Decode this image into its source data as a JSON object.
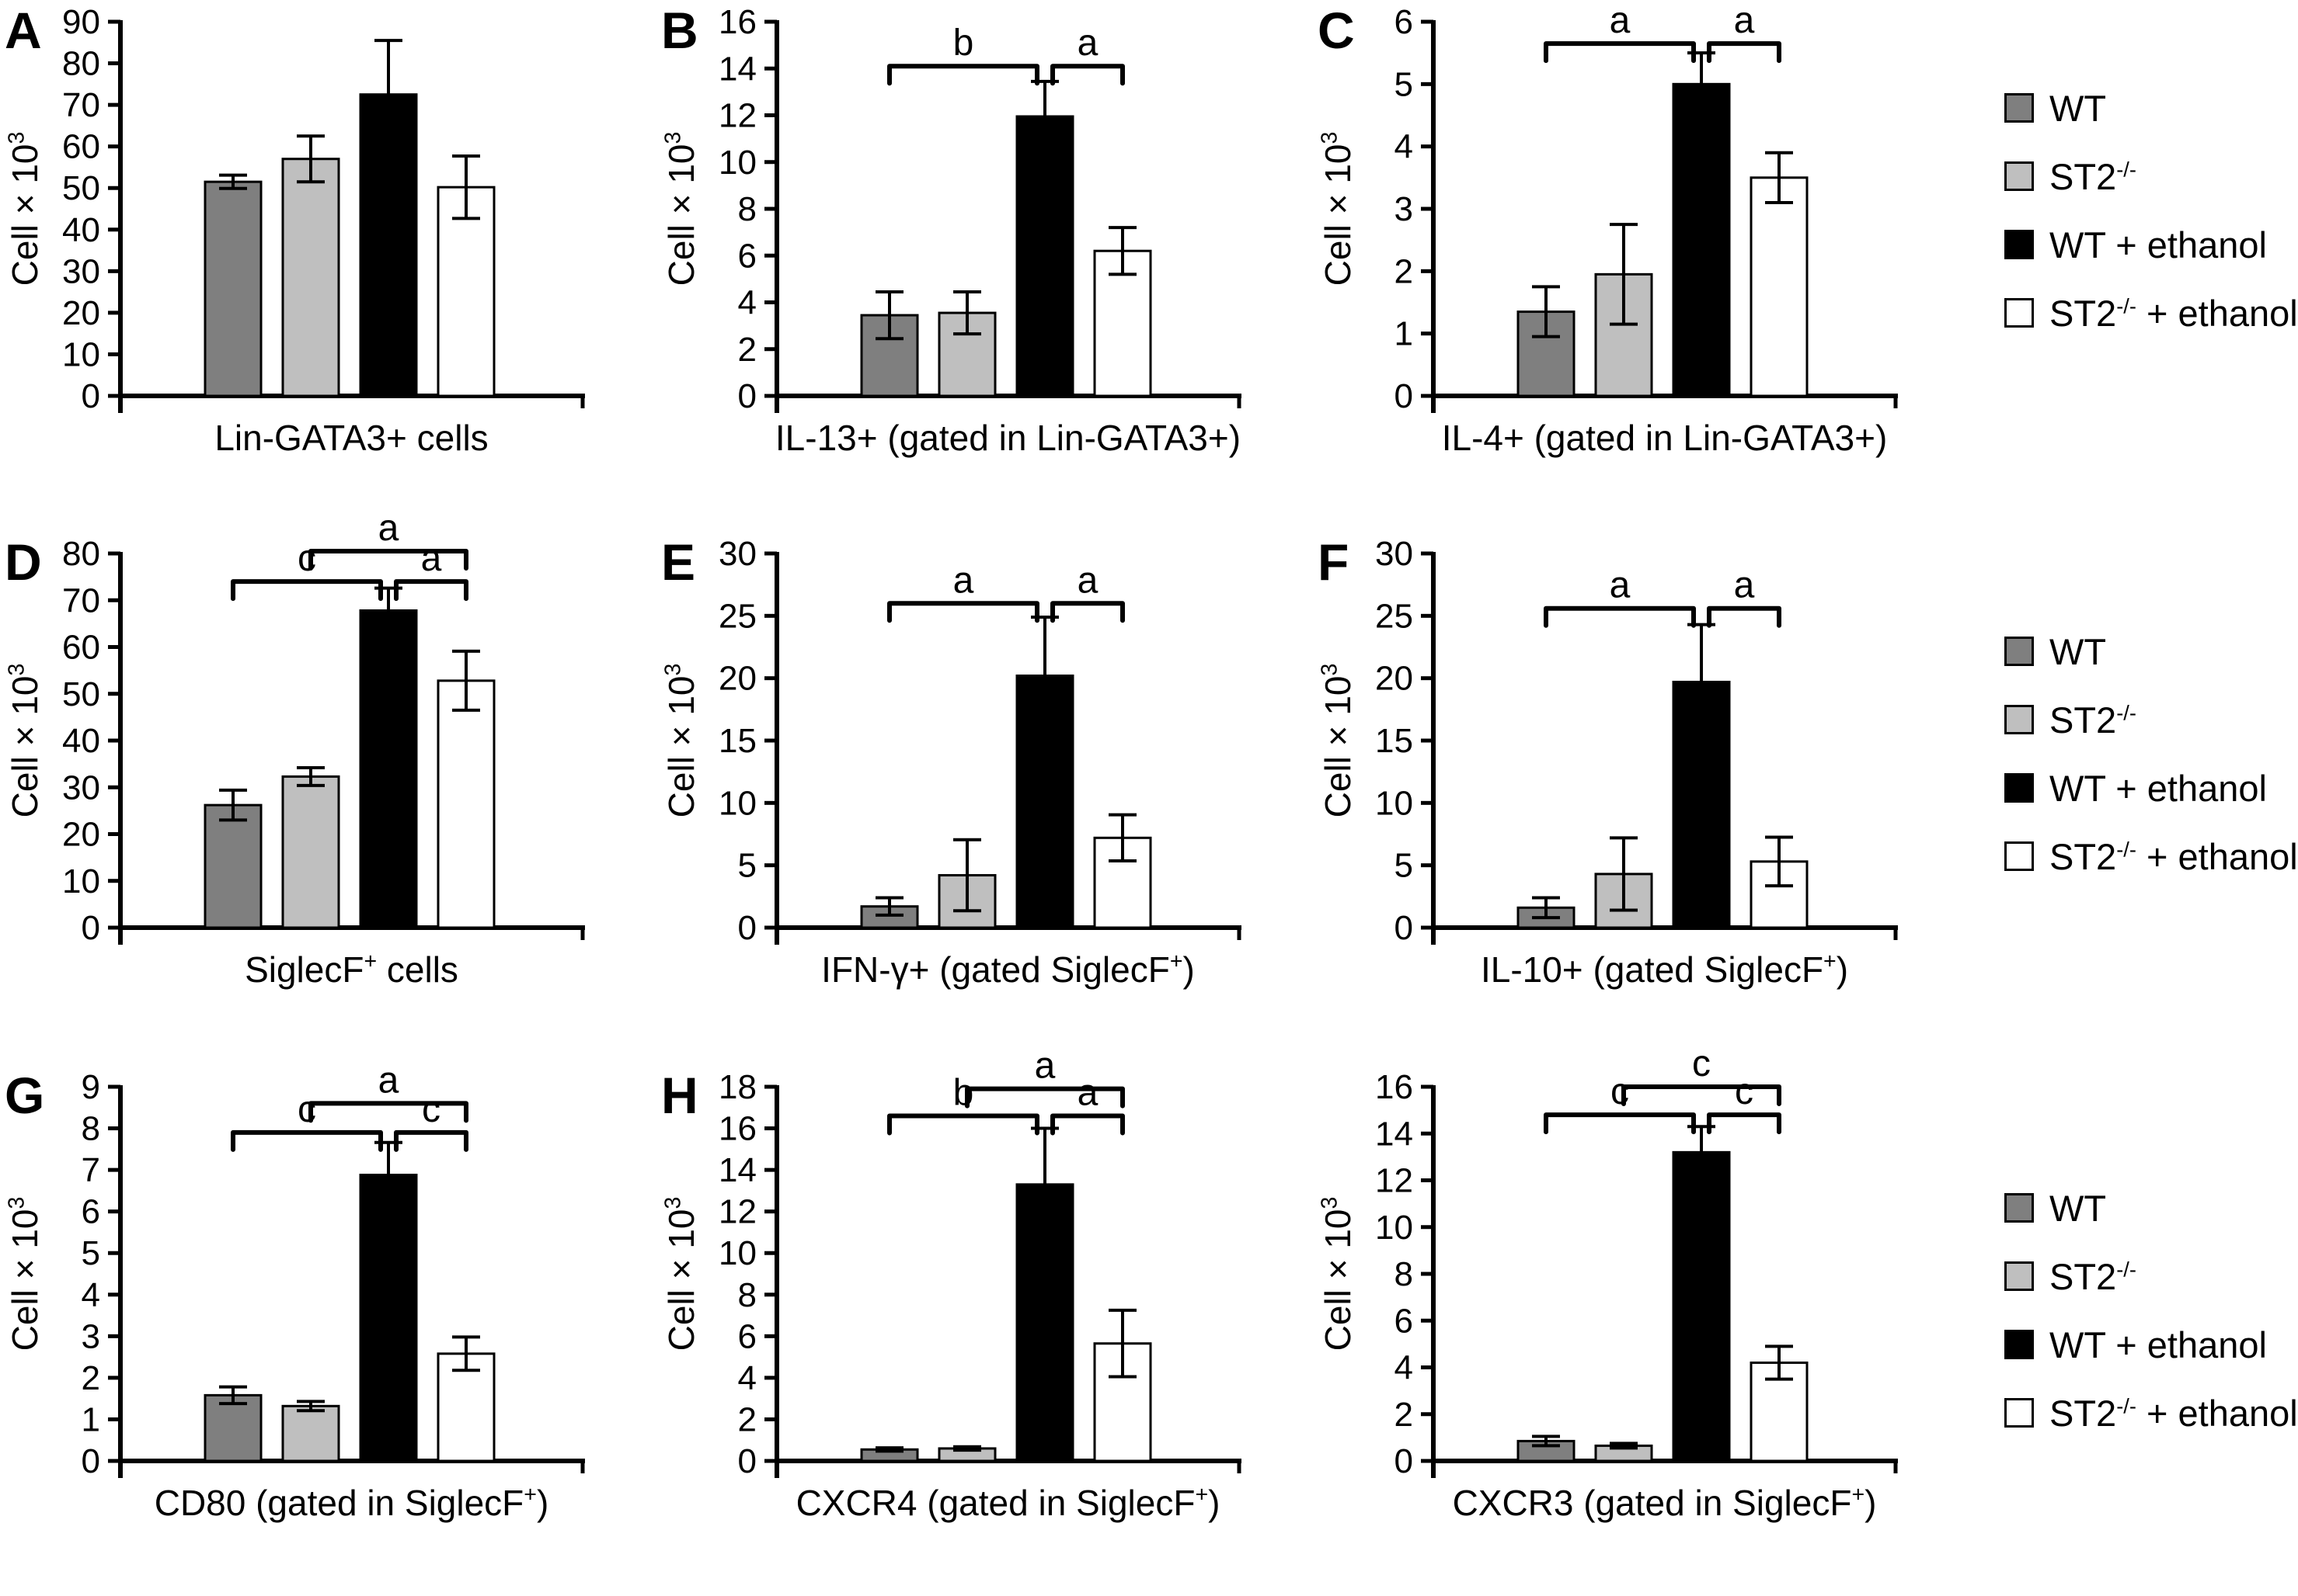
{
  "figure": {
    "ylabel_text": "Cell × 10³",
    "ylabel_segments": [
      {
        "t": "Cell × 10"
      },
      {
        "t": "3",
        "sup": true
      }
    ],
    "bar_colors": [
      "#7f7f7f",
      "#bfbfbf",
      "#000000",
      "#ffffff"
    ],
    "axis_color": "#000000",
    "groups": [
      "WT",
      "ST2-/-",
      "WT + ethanol",
      "ST2-/- + ethanol"
    ],
    "legend": {
      "items": [
        {
          "key": "wt",
          "text": "WT",
          "segments": [
            {
              "t": "WT"
            }
          ],
          "color": "#7f7f7f"
        },
        {
          "key": "st2",
          "text": "ST2⁻/⁻",
          "segments": [
            {
              "t": "ST2"
            },
            {
              "t": "-/-",
              "sup": true
            }
          ],
          "color": "#bfbfbf"
        },
        {
          "key": "wt-ethanol",
          "text": "WT + ethanol",
          "segments": [
            {
              "t": "WT + ethanol"
            }
          ],
          "color": "#000000"
        },
        {
          "key": "st2-ethanol",
          "text": "ST2⁻/⁻ + ethanol",
          "segments": [
            {
              "t": "ST2"
            },
            {
              "t": "-/-",
              "sup": true
            },
            {
              "t": " + ethanol"
            }
          ],
          "color": "#ffffff"
        }
      ]
    }
  },
  "chart_data": [
    {
      "panel_letter": "A",
      "type": "bar",
      "groups": [
        "WT",
        "ST2-/-",
        "WT + ethanol",
        "ST2-/- + ethanol"
      ],
      "values": [
        51.5,
        57,
        72.5,
        50.2
      ],
      "errors": [
        1.6,
        5.5,
        13,
        7.5
      ],
      "ylim": [
        0,
        90
      ],
      "ytick_step": 10,
      "ylabel": "Cell × 10³",
      "xlabel_text": "Lin-GATA3+ cells",
      "xlabel_segments": [
        {
          "t": "Lin-GATA3+ cells"
        }
      ],
      "brackets": []
    },
    {
      "panel_letter": "B",
      "type": "bar",
      "groups": [
        "WT",
        "ST2-/-",
        "WT + ethanol",
        "ST2-/- + ethanol"
      ],
      "values": [
        3.45,
        3.55,
        11.95,
        6.2
      ],
      "errors": [
        1.0,
        0.9,
        1.5,
        1.0
      ],
      "ylim": [
        0,
        16
      ],
      "ytick_step": 2,
      "ylabel": "Cell × 10³",
      "xlabel_text": "IL-13+ (gated in Lin-GATA3+)",
      "xlabel_segments": [
        {
          "t": "IL-13+ (gated in Lin-GATA3+)"
        }
      ],
      "brackets": [
        {
          "from": 0,
          "to": 2,
          "label": "b",
          "y": 14.1
        },
        {
          "from": 2,
          "to": 3,
          "label": "a",
          "y": 14.1
        }
      ]
    },
    {
      "panel_letter": "C",
      "type": "bar",
      "groups": [
        "WT",
        "ST2-/-",
        "WT + ethanol",
        "ST2-/- + ethanol"
      ],
      "values": [
        1.35,
        1.95,
        5.0,
        3.5
      ],
      "errors": [
        0.4,
        0.8,
        0.5,
        0.4
      ],
      "ylim": [
        0,
        6
      ],
      "ytick_step": 1,
      "ylabel": "Cell × 10³",
      "xlabel_text": "IL-4+ (gated in Lin-GATA3+)",
      "xlabel_segments": [
        {
          "t": "IL-4+ (gated in Lin-GATA3+)"
        }
      ],
      "brackets": [
        {
          "from": 0,
          "to": 2,
          "label": "a",
          "y": 5.65
        },
        {
          "from": 2,
          "to": 3,
          "label": "a",
          "y": 5.65
        }
      ]
    },
    {
      "panel_letter": "D",
      "type": "bar",
      "groups": [
        "WT",
        "ST2-/-",
        "WT + ethanol",
        "ST2-/- + ethanol"
      ],
      "values": [
        26.2,
        32.3,
        67.8,
        52.8
      ],
      "errors": [
        3.2,
        1.9,
        4.8,
        6.3
      ],
      "ylim": [
        0,
        80
      ],
      "ytick_step": 10,
      "ylabel": "Cell × 10³",
      "xlabel_text": "SiglecF⁺ cells",
      "xlabel_segments": [
        {
          "t": "SiglecF"
        },
        {
          "t": "+",
          "sup": true
        },
        {
          "t": " cells"
        }
      ],
      "brackets": [
        {
          "from": 0,
          "to": 2,
          "label": "c",
          "y": 74
        },
        {
          "from": 1,
          "to": 3,
          "label": "a",
          "y": 80.5
        },
        {
          "from": 2,
          "to": 3,
          "label": "a",
          "y": 74
        }
      ]
    },
    {
      "panel_letter": "E",
      "type": "bar",
      "groups": [
        "WT",
        "ST2-/-",
        "WT + ethanol",
        "ST2-/- + ethanol"
      ],
      "values": [
        1.7,
        4.2,
        20.2,
        7.2
      ],
      "errors": [
        0.7,
        2.85,
        4.7,
        1.85
      ],
      "ylim": [
        0,
        30
      ],
      "ytick_step": 5,
      "ylabel": "Cell × 10³",
      "xlabel_text": "IFN-γ+ (gated SiglecF⁺)",
      "xlabel_segments": [
        {
          "t": "IFN-γ+ (gated SiglecF"
        },
        {
          "t": "+",
          "sup": true
        },
        {
          "t": ")"
        }
      ],
      "brackets": [
        {
          "from": 0,
          "to": 2,
          "label": "a",
          "y": 26
        },
        {
          "from": 2,
          "to": 3,
          "label": "a",
          "y": 26
        }
      ]
    },
    {
      "panel_letter": "F",
      "type": "bar",
      "groups": [
        "WT",
        "ST2-/-",
        "WT + ethanol",
        "ST2-/- + ethanol"
      ],
      "values": [
        1.6,
        4.3,
        19.7,
        5.3
      ],
      "errors": [
        0.8,
        2.9,
        4.6,
        1.95
      ],
      "ylim": [
        0,
        30
      ],
      "ytick_step": 5,
      "ylabel": "Cell × 10³",
      "xlabel_text": "IL-10+ (gated SiglecF⁺)",
      "xlabel_segments": [
        {
          "t": "IL-10+ (gated SiglecF"
        },
        {
          "t": "+",
          "sup": true
        },
        {
          "t": ")"
        }
      ],
      "brackets": [
        {
          "from": 0,
          "to": 2,
          "label": "a",
          "y": 25.6
        },
        {
          "from": 2,
          "to": 3,
          "label": "a",
          "y": 25.6
        }
      ]
    },
    {
      "panel_letter": "G",
      "type": "bar",
      "groups": [
        "WT",
        "ST2-/-",
        "WT + ethanol",
        "ST2-/- + ethanol"
      ],
      "values": [
        1.58,
        1.32,
        6.88,
        2.58
      ],
      "errors": [
        0.2,
        0.11,
        0.78,
        0.4
      ],
      "ylim": [
        0,
        9
      ],
      "ytick_step": 1,
      "ylabel": "Cell × 10³",
      "xlabel_text": "CD80 (gated in SiglecF⁺)",
      "xlabel_segments": [
        {
          "t": "CD80 (gated in SiglecF"
        },
        {
          "t": "+",
          "sup": true
        },
        {
          "t": ")"
        }
      ],
      "brackets": [
        {
          "from": 0,
          "to": 2,
          "label": "c",
          "y": 7.9
        },
        {
          "from": 1,
          "to": 3,
          "label": "a",
          "y": 8.6
        },
        {
          "from": 2,
          "to": 3,
          "label": "c",
          "y": 7.9
        }
      ]
    },
    {
      "panel_letter": "H",
      "type": "bar",
      "groups": [
        "WT",
        "ST2-/-",
        "WT + ethanol",
        "ST2-/- + ethanol"
      ],
      "values": [
        0.55,
        0.6,
        13.3,
        5.65
      ],
      "errors": [
        0.08,
        0.08,
        2.7,
        1.6
      ],
      "ylim": [
        0,
        18
      ],
      "ytick_step": 2,
      "ylabel": "Cell × 10³",
      "xlabel_text": "CXCR4 (gated in SiglecF⁺)",
      "xlabel_segments": [
        {
          "t": "CXCR4 (gated in SiglecF"
        },
        {
          "t": "+",
          "sup": true
        },
        {
          "t": ")"
        }
      ],
      "brackets": [
        {
          "from": 0,
          "to": 2,
          "label": "b",
          "y": 16.6
        },
        {
          "from": 1,
          "to": 3,
          "label": "a",
          "y": 17.9
        },
        {
          "from": 2,
          "to": 3,
          "label": "a",
          "y": 16.6
        }
      ]
    },
    {
      "panel_letter": "",
      "type": "bar",
      "groups": [
        "WT",
        "ST2-/-",
        "WT + ethanol",
        "ST2-/- + ethanol"
      ],
      "values": [
        0.85,
        0.65,
        13.2,
        4.2
      ],
      "errors": [
        0.2,
        0.1,
        1.1,
        0.7
      ],
      "ylim": [
        0,
        16
      ],
      "ytick_step": 2,
      "ylabel": "Cell × 10³",
      "xlabel_text": "CXCR3 (gated in SiglecF⁺)",
      "xlabel_segments": [
        {
          "t": "CXCR3 (gated in SiglecF"
        },
        {
          "t": "+",
          "sup": true
        },
        {
          "t": ")"
        }
      ],
      "brackets": [
        {
          "from": 0,
          "to": 2,
          "label": "c",
          "y": 14.8
        },
        {
          "from": 1,
          "to": 3,
          "label": "c",
          "y": 16.0
        },
        {
          "from": 2,
          "to": 3,
          "label": "c",
          "y": 14.8
        }
      ]
    }
  ]
}
